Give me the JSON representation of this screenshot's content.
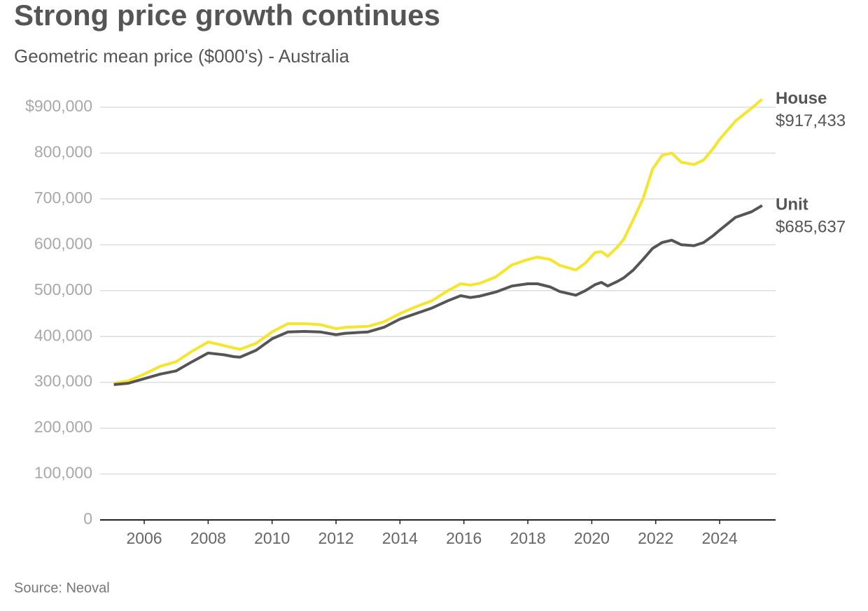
{
  "chart_data": {
    "type": "line",
    "title": "Strong price growth continues",
    "subtitle": "Geometric mean price ($000's) - Australia",
    "source": "Source: Neoval",
    "x": [
      2005.05,
      2005.5,
      2006.0,
      2006.5,
      2007.0,
      2007.5,
      2008.0,
      2008.5,
      2008.8,
      2009.0,
      2009.5,
      2010.0,
      2010.5,
      2011.0,
      2011.5,
      2012.0,
      2012.3,
      2013.0,
      2013.5,
      2014.0,
      2014.5,
      2015.0,
      2015.5,
      2015.9,
      2016.2,
      2016.5,
      2017.0,
      2017.5,
      2018.0,
      2018.3,
      2018.7,
      2019.0,
      2019.5,
      2019.8,
      2020.1,
      2020.3,
      2020.5,
      2020.8,
      2021.0,
      2021.3,
      2021.6,
      2021.9,
      2022.2,
      2022.5,
      2022.8,
      2023.2,
      2023.5,
      2023.8,
      2024.0,
      2024.5,
      2025.0,
      2025.33
    ],
    "series": [
      {
        "name": "House",
        "color": "#f5e52c",
        "end_label": "$917,433",
        "values": [
          298000,
          303000,
          318000,
          335000,
          345000,
          368000,
          388000,
          380000,
          375000,
          372000,
          385000,
          410000,
          428000,
          428000,
          426000,
          417000,
          420000,
          422000,
          432000,
          450000,
          465000,
          478000,
          500000,
          515000,
          512000,
          516000,
          530000,
          556000,
          568000,
          573000,
          568000,
          555000,
          545000,
          560000,
          583000,
          585000,
          575000,
          595000,
          612000,
          655000,
          700000,
          765000,
          795000,
          800000,
          780000,
          775000,
          785000,
          810000,
          830000,
          870000,
          898000,
          917433
        ]
      },
      {
        "name": "Unit",
        "color": "#555555",
        "end_label": "$685,637",
        "values": [
          295000,
          298000,
          308000,
          318000,
          325000,
          345000,
          364000,
          360000,
          356000,
          355000,
          370000,
          395000,
          410000,
          411000,
          410000,
          404000,
          407000,
          410000,
          420000,
          438000,
          450000,
          462000,
          478000,
          489000,
          485000,
          488000,
          497000,
          510000,
          515000,
          515000,
          508000,
          498000,
          490000,
          500000,
          513000,
          518000,
          510000,
          520000,
          528000,
          545000,
          568000,
          592000,
          605000,
          610000,
          600000,
          598000,
          605000,
          620000,
          632000,
          660000,
          672000,
          685637
        ]
      }
    ],
    "xlim": [
      2004.62,
      2025.75
    ],
    "xticks": [
      2006,
      2008,
      2010,
      2012,
      2014,
      2016,
      2018,
      2020,
      2022,
      2024
    ],
    "ylim": [
      0,
      900000
    ],
    "yticks": [
      0,
      {
        "value": 100000,
        "label": "100,000"
      },
      {
        "value": 200000,
        "label": "200,000"
      },
      {
        "value": 300000,
        "label": "300,000"
      },
      {
        "value": 400000,
        "label": "400,000"
      },
      {
        "value": 500000,
        "label": "500,000"
      },
      {
        "value": 600000,
        "label": "600,000"
      },
      {
        "value": 700000,
        "label": "700,000"
      },
      {
        "value": 800000,
        "label": "800,000"
      },
      {
        "value": 900000,
        "label": "$900,000"
      }
    ],
    "grid": true
  }
}
